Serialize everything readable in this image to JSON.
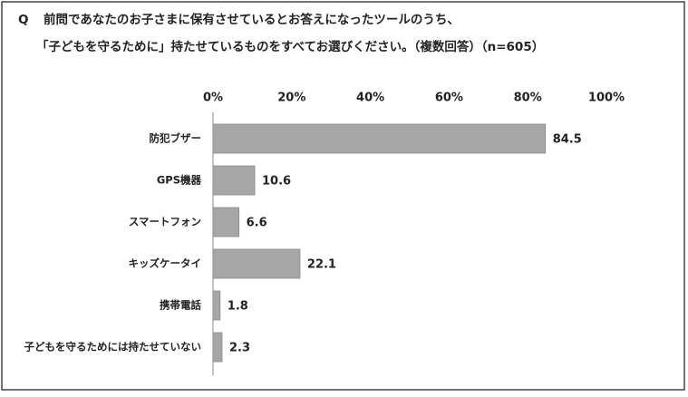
{
  "chart_data": {
    "type": "bar",
    "orientation": "horizontal",
    "question_label": "Q",
    "title": [
      "前問であなたのお子さまに保有させているとお答えになったツールのうち、",
      "「子どもを守るために」持たせているものをすべてお選びください。（複数回答）（n=605）"
    ],
    "categories": [
      "防犯ブザー",
      "GPS機器",
      "スマートフォン",
      "キッズケータイ",
      "携帯電話",
      "子どもを守るためには持たせていない"
    ],
    "values": [
      84.5,
      10.6,
      6.6,
      22.1,
      1.8,
      2.3
    ],
    "color": "#a6a6a6",
    "xlim": [
      0,
      100
    ],
    "xticks": [
      {
        "value": 0,
        "label": "0%"
      },
      {
        "value": 20,
        "label": "20%"
      },
      {
        "value": 40,
        "label": "40%"
      },
      {
        "value": 60,
        "label": "60%"
      },
      {
        "value": 80,
        "label": "80%"
      },
      {
        "value": 100,
        "label": "100%"
      }
    ],
    "grid": false
  }
}
